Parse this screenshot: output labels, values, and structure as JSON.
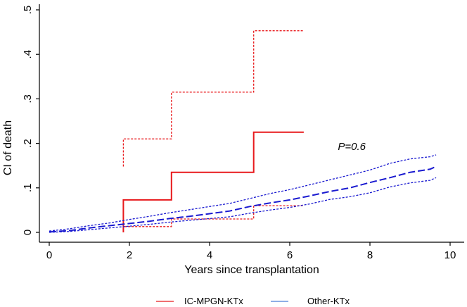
{
  "chart_data": {
    "type": "line",
    "title": "",
    "xlabel": "Years since transplantation",
    "ylabel": "CI of death",
    "xlim": [
      0,
      10
    ],
    "ylim": [
      0,
      0.5
    ],
    "x_ticks": [
      0,
      2,
      4,
      6,
      8,
      10
    ],
    "x_tick_labels": [
      "0",
      "2",
      "4",
      "6",
      "8",
      "10"
    ],
    "y_ticks": [
      0,
      0.1,
      0.2,
      0.3,
      0.4,
      0.5
    ],
    "y_tick_labels": [
      "0",
      ".1",
      ".2",
      ".3",
      ".4",
      ".5"
    ],
    "annotation": {
      "text": "P=0.6",
      "x": 7.2,
      "y": 0.185
    },
    "series": [
      {
        "name": "IC-MPGN-KTx",
        "color": "#e8191c",
        "style": "step",
        "estimate": [
          [
            1.85,
            0.0
          ],
          [
            1.85,
            0.073
          ],
          [
            3.05,
            0.073
          ],
          [
            3.05,
            0.135
          ],
          [
            5.1,
            0.135
          ],
          [
            5.1,
            0.225
          ],
          [
            6.35,
            0.225
          ]
        ],
        "upper_ci": [
          [
            1.85,
            0.148
          ],
          [
            1.85,
            0.21
          ],
          [
            3.05,
            0.21
          ],
          [
            3.05,
            0.315
          ],
          [
            5.1,
            0.315
          ],
          [
            5.1,
            0.453
          ],
          [
            6.35,
            0.453
          ]
        ],
        "lower_ci": [
          [
            1.85,
            0.0
          ],
          [
            1.85,
            0.013
          ],
          [
            3.05,
            0.013
          ],
          [
            3.05,
            0.03
          ],
          [
            5.1,
            0.03
          ],
          [
            5.1,
            0.06
          ],
          [
            6.35,
            0.06
          ]
        ]
      },
      {
        "name": "Other-KTx",
        "color": "#1a1ad0",
        "style": "smooth",
        "estimate": [
          [
            0,
            0.001
          ],
          [
            0.5,
            0.004
          ],
          [
            1,
            0.01
          ],
          [
            1.5,
            0.015
          ],
          [
            2,
            0.02
          ],
          [
            2.5,
            0.025
          ],
          [
            3,
            0.031
          ],
          [
            3.5,
            0.036
          ],
          [
            4,
            0.042
          ],
          [
            4.5,
            0.048
          ],
          [
            5,
            0.058
          ],
          [
            5.5,
            0.066
          ],
          [
            6,
            0.073
          ],
          [
            6.5,
            0.082
          ],
          [
            7,
            0.092
          ],
          [
            7.5,
            0.1
          ],
          [
            8,
            0.112
          ],
          [
            8.5,
            0.123
          ],
          [
            9,
            0.135
          ],
          [
            9.5,
            0.142
          ],
          [
            9.65,
            0.148
          ]
        ],
        "upper_ci": [
          [
            0,
            0.003
          ],
          [
            0.5,
            0.008
          ],
          [
            1,
            0.015
          ],
          [
            1.5,
            0.021
          ],
          [
            2,
            0.029
          ],
          [
            2.5,
            0.036
          ],
          [
            3,
            0.044
          ],
          [
            3.5,
            0.051
          ],
          [
            4,
            0.058
          ],
          [
            4.5,
            0.065
          ],
          [
            5,
            0.076
          ],
          [
            5.5,
            0.087
          ],
          [
            6,
            0.096
          ],
          [
            6.5,
            0.107
          ],
          [
            7,
            0.118
          ],
          [
            7.5,
            0.129
          ],
          [
            8,
            0.14
          ],
          [
            8.5,
            0.155
          ],
          [
            9,
            0.165
          ],
          [
            9.5,
            0.17
          ],
          [
            9.65,
            0.174
          ]
        ],
        "lower_ci": [
          [
            0,
            0.0
          ],
          [
            0.5,
            0.002
          ],
          [
            1,
            0.006
          ],
          [
            1.5,
            0.01
          ],
          [
            2,
            0.014
          ],
          [
            2.5,
            0.018
          ],
          [
            3,
            0.023
          ],
          [
            3.5,
            0.027
          ],
          [
            4,
            0.031
          ],
          [
            4.5,
            0.035
          ],
          [
            5,
            0.043
          ],
          [
            5.5,
            0.05
          ],
          [
            6,
            0.056
          ],
          [
            6.5,
            0.064
          ],
          [
            7,
            0.074
          ],
          [
            7.5,
            0.08
          ],
          [
            8,
            0.089
          ],
          [
            8.5,
            0.102
          ],
          [
            9,
            0.111
          ],
          [
            9.5,
            0.117
          ],
          [
            9.65,
            0.123
          ]
        ]
      }
    ],
    "legend": {
      "position": "bottom",
      "items": [
        {
          "label": "IC-MPGN-KTx",
          "color": "#e8191c"
        },
        {
          "label": "Other-KTx",
          "color": "#4a7fd6"
        }
      ]
    },
    "colors": {
      "axis": "#000000",
      "background": "#ffffff"
    }
  }
}
